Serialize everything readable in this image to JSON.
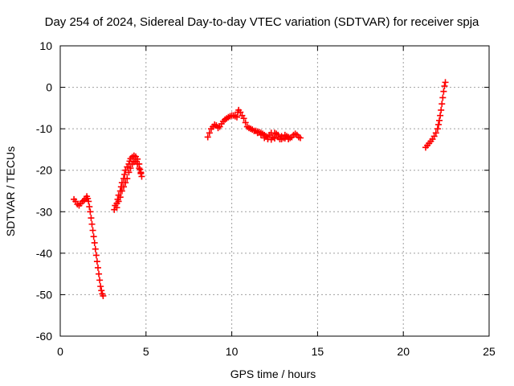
{
  "chart_data": {
    "type": "scatter",
    "title": "Day 254 of 2024, Sidereal Day-to-day VTEC variation (SDTVAR) for receiver spja",
    "xlabel": "GPS time / hours",
    "ylabel": "SDTVAR / TECUs",
    "xlim": [
      0,
      25
    ],
    "ylim": [
      -60,
      10
    ],
    "xticks": [
      "0",
      "5",
      "10",
      "15",
      "20",
      "25"
    ],
    "yticks": [
      "10",
      "0",
      "-10",
      "-20",
      "-30",
      "-40",
      "-50",
      "-60"
    ],
    "grid": true,
    "marker": "+",
    "color": "#ff0000",
    "series": [
      {
        "points": [
          [
            0.8,
            -27
          ],
          [
            0.9,
            -27.5
          ],
          [
            1.0,
            -28.2
          ],
          [
            1.1,
            -28.5
          ],
          [
            1.2,
            -28
          ],
          [
            1.3,
            -27.5
          ],
          [
            1.4,
            -27.2
          ],
          [
            1.5,
            -26.8
          ],
          [
            1.55,
            -26.3
          ],
          [
            1.6,
            -26.8
          ],
          [
            1.65,
            -27.5
          ],
          [
            1.7,
            -28.8
          ],
          [
            1.75,
            -30
          ],
          [
            1.8,
            -31.5
          ],
          [
            1.85,
            -33
          ],
          [
            1.9,
            -34.5
          ],
          [
            1.95,
            -36
          ],
          [
            2.0,
            -37.5
          ],
          [
            2.05,
            -39
          ],
          [
            2.1,
            -40.5
          ],
          [
            2.15,
            -42
          ],
          [
            2.2,
            -43.5
          ],
          [
            2.25,
            -45
          ],
          [
            2.3,
            -46.5
          ],
          [
            2.35,
            -48
          ],
          [
            2.4,
            -49
          ],
          [
            2.45,
            -49.8
          ],
          [
            2.5,
            -50.3
          ]
        ]
      },
      {
        "points": [
          [
            3.15,
            -29.5
          ],
          [
            3.2,
            -28.5
          ],
          [
            3.3,
            -28
          ],
          [
            3.35,
            -27
          ],
          [
            3.4,
            -26
          ],
          [
            3.5,
            -25
          ],
          [
            3.55,
            -24
          ],
          [
            3.6,
            -23
          ],
          [
            3.7,
            -22
          ],
          [
            3.75,
            -21
          ],
          [
            3.8,
            -20
          ],
          [
            3.9,
            -19.2
          ],
          [
            4.0,
            -18.5
          ],
          [
            4.05,
            -17.8
          ],
          [
            4.1,
            -17.2
          ],
          [
            4.2,
            -16.8
          ],
          [
            4.3,
            -16.5
          ],
          [
            4.4,
            -16.7
          ],
          [
            4.5,
            -17.3
          ],
          [
            4.6,
            -18.5
          ],
          [
            4.65,
            -19.8
          ],
          [
            4.7,
            -20.8
          ],
          [
            4.75,
            -21.5
          ],
          [
            3.3,
            -29
          ],
          [
            3.4,
            -27.5
          ],
          [
            3.5,
            -26.5
          ],
          [
            3.6,
            -25
          ],
          [
            3.7,
            -24
          ],
          [
            3.8,
            -23
          ],
          [
            3.9,
            -22
          ],
          [
            4.0,
            -20.5
          ],
          [
            4.1,
            -19.5
          ],
          [
            4.2,
            -18.5
          ],
          [
            4.3,
            -18
          ],
          [
            4.4,
            -17.8
          ],
          [
            4.5,
            -18.5
          ],
          [
            4.6,
            -19.5
          ],
          [
            4.7,
            -20.5
          ]
        ]
      },
      {
        "points": [
          [
            8.6,
            -12
          ],
          [
            8.7,
            -11
          ],
          [
            8.8,
            -10
          ],
          [
            8.9,
            -9.5
          ],
          [
            9.0,
            -9
          ],
          [
            9.1,
            -9.2
          ],
          [
            9.2,
            -9.8
          ],
          [
            9.3,
            -9.5
          ],
          [
            9.4,
            -8.8
          ],
          [
            9.5,
            -8.2
          ],
          [
            9.6,
            -7.8
          ],
          [
            9.7,
            -7.5
          ],
          [
            9.8,
            -7.2
          ],
          [
            9.9,
            -7.0
          ],
          [
            10.0,
            -6.8
          ],
          [
            10.1,
            -6.8
          ],
          [
            10.2,
            -7.0
          ],
          [
            10.3,
            -7.2
          ],
          [
            10.35,
            -6.0
          ],
          [
            10.4,
            -5.5
          ],
          [
            10.5,
            -6.0
          ],
          [
            10.6,
            -6.8
          ],
          [
            10.7,
            -7.5
          ],
          [
            10.8,
            -8.5
          ],
          [
            10.9,
            -9.5
          ],
          [
            11.0,
            -9.8
          ],
          [
            11.1,
            -10.0
          ],
          [
            11.2,
            -10.2
          ],
          [
            11.3,
            -10.5
          ],
          [
            11.4,
            -10.5
          ],
          [
            11.5,
            -10.7
          ],
          [
            11.6,
            -10.8
          ],
          [
            11.7,
            -11.0
          ],
          [
            11.8,
            -11.2
          ],
          [
            11.9,
            -11.5
          ],
          [
            12.0,
            -11.8
          ],
          [
            12.1,
            -12.0
          ],
          [
            12.2,
            -11.5
          ],
          [
            12.3,
            -11.0
          ],
          [
            12.4,
            -12.0
          ],
          [
            12.5,
            -12.3
          ],
          [
            12.6,
            -11.2
          ],
          [
            12.7,
            -12.0
          ],
          [
            12.8,
            -12.5
          ],
          [
            12.9,
            -11.8
          ],
          [
            13.0,
            -12.2
          ],
          [
            13.1,
            -12.3
          ],
          [
            13.2,
            -11.8
          ],
          [
            13.3,
            -12.0
          ],
          [
            13.4,
            -12.2
          ],
          [
            13.5,
            -12.0
          ],
          [
            13.6,
            -11.5
          ],
          [
            13.7,
            -11.2
          ],
          [
            13.8,
            -11.5
          ],
          [
            13.9,
            -12.0
          ],
          [
            14.0,
            -12.2
          ],
          [
            11.5,
            -11.0
          ],
          [
            11.7,
            -11.5
          ],
          [
            11.9,
            -12.2
          ],
          [
            12.1,
            -12.5
          ],
          [
            12.3,
            -12.6
          ],
          [
            12.5,
            -11.0
          ],
          [
            12.7,
            -11.5
          ],
          [
            12.9,
            -12.5
          ],
          [
            13.1,
            -11.5
          ],
          [
            13.3,
            -12.5
          ]
        ]
      },
      {
        "points": [
          [
            21.3,
            -14.5
          ],
          [
            21.4,
            -14.0
          ],
          [
            21.5,
            -13.5
          ],
          [
            21.6,
            -13.0
          ],
          [
            21.7,
            -12.5
          ],
          [
            21.8,
            -11.8
          ],
          [
            21.9,
            -11.0
          ],
          [
            22.0,
            -10.0
          ],
          [
            22.05,
            -9.0
          ],
          [
            22.1,
            -8.0
          ],
          [
            22.15,
            -6.8
          ],
          [
            22.2,
            -5.5
          ],
          [
            22.25,
            -4.0
          ],
          [
            22.3,
            -2.5
          ],
          [
            22.35,
            -1.0
          ],
          [
            22.4,
            0.3
          ],
          [
            22.45,
            1.2
          ]
        ]
      }
    ]
  }
}
